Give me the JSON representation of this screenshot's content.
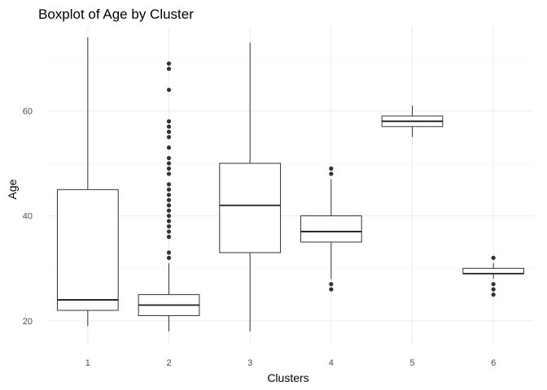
{
  "chart_data": {
    "type": "boxplot",
    "title": "Boxplot of Age by Cluster",
    "xlabel": "Clusters",
    "ylabel": "Age",
    "ylim": [
      15.5,
      76
    ],
    "yticks": [
      20,
      40,
      60
    ],
    "grid": true,
    "legend": "none",
    "categories": [
      "1",
      "2",
      "3",
      "4",
      "5",
      "6"
    ],
    "boxes": [
      {
        "category": "1",
        "whisker_low": 19,
        "q1": 22,
        "median": 24,
        "q3": 45,
        "whisker_high": 74,
        "outliers": []
      },
      {
        "category": "2",
        "whisker_low": 18,
        "q1": 21,
        "median": 23,
        "q3": 25,
        "whisker_high": 31,
        "outliers": [
          32,
          33,
          36,
          37,
          38,
          39,
          40,
          41,
          42,
          43,
          44,
          45,
          46,
          48,
          49,
          50,
          51,
          53,
          55,
          56,
          57,
          58,
          64,
          68,
          69
        ]
      },
      {
        "category": "3",
        "whisker_low": 18,
        "q1": 33,
        "median": 42,
        "q3": 50,
        "whisker_high": 73,
        "outliers": []
      },
      {
        "category": "4",
        "whisker_low": 28,
        "q1": 35,
        "median": 37,
        "q3": 40,
        "whisker_high": 47,
        "outliers": [
          26,
          27,
          48,
          49
        ]
      },
      {
        "category": "5",
        "whisker_low": 55,
        "q1": 57,
        "median": 58,
        "q3": 59,
        "whisker_high": 61,
        "outliers": []
      },
      {
        "category": "6",
        "whisker_low": 28,
        "q1": 29,
        "median": 29,
        "q3": 30,
        "whisker_high": 31,
        "outliers": [
          25,
          26,
          27,
          32
        ]
      }
    ]
  }
}
